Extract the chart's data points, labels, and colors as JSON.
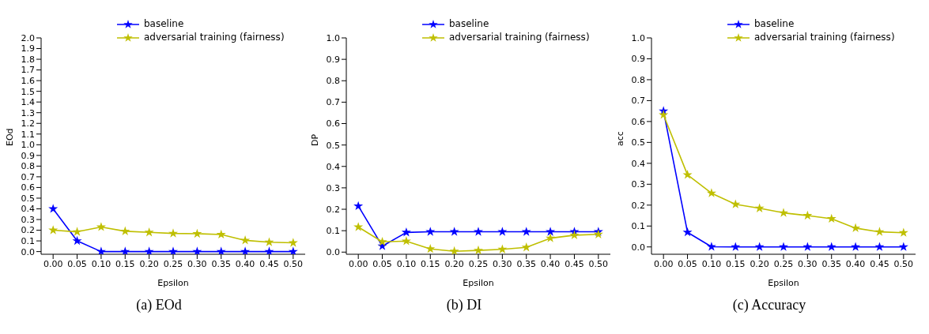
{
  "chart_data": [
    {
      "type": "line",
      "ylabel": "EOd",
      "xlabel": "Epsilon",
      "annotations": [
        "(a) EOd"
      ],
      "legend": "top",
      "marker": "star",
      "grid": false,
      "x": [
        0,
        0.05,
        0.1,
        0.15,
        0.2,
        0.25,
        0.3,
        0.35,
        0.4,
        0.45,
        0.5
      ],
      "xlim": [
        -0.025,
        0.525
      ],
      "xticks": [
        {
          "value": 0,
          "label": "0.00"
        },
        {
          "value": 0.05,
          "label": "0.05"
        },
        {
          "value": 0.1,
          "label": "0.10"
        },
        {
          "value": 0.15,
          "label": "0.15"
        },
        {
          "value": 0.2,
          "label": "0.20"
        },
        {
          "value": 0.25,
          "label": "0.25"
        },
        {
          "value": 0.3,
          "label": "0.30"
        },
        {
          "value": 0.35,
          "label": "0.35"
        },
        {
          "value": 0.4,
          "label": "0.40"
        },
        {
          "value": 0.45,
          "label": "0.45"
        },
        {
          "value": 0.5,
          "label": "0.50"
        }
      ],
      "ylim": [
        -0.025,
        2.0
      ],
      "yticks": [
        {
          "value": 0,
          "label": "0.0"
        },
        0.1,
        0.2,
        0.3,
        0.4,
        0.5,
        0.6,
        0.7,
        0.8,
        0.9,
        {
          "value": 1,
          "label": "1.0"
        },
        1.1,
        1.2,
        1.3,
        1.4,
        1.5,
        1.6,
        1.7,
        1.8,
        1.9,
        {
          "value": 2,
          "label": "2.0"
        }
      ],
      "series": [
        {
          "name": "baseline",
          "color": "#0000ff",
          "values": [
            0.4,
            0.1,
            0,
            0,
            0,
            0,
            0,
            0,
            0,
            0,
            0
          ]
        },
        {
          "name": "adversarial training (fairness)",
          "color": "#bfbf00",
          "values": [
            0.2,
            0.185,
            0.23,
            0.19,
            0.18,
            0.17,
            0.167,
            0.16,
            0.105,
            0.088,
            0.082
          ]
        }
      ]
    },
    {
      "type": "line",
      "ylabel": "DP",
      "xlabel": "Epsilon",
      "annotations": [
        "(b) DI"
      ],
      "legend": "top",
      "marker": "star",
      "grid": false,
      "x": [
        0,
        0.05,
        0.1,
        0.15,
        0.2,
        0.25,
        0.3,
        0.35,
        0.4,
        0.45,
        0.5
      ],
      "xlim": [
        -0.025,
        0.525
      ],
      "xticks": [
        {
          "value": 0,
          "label": "0.00"
        },
        {
          "value": 0.05,
          "label": "0.05"
        },
        {
          "value": 0.1,
          "label": "0.10"
        },
        {
          "value": 0.15,
          "label": "0.15"
        },
        {
          "value": 0.2,
          "label": "0.20"
        },
        {
          "value": 0.25,
          "label": "0.25"
        },
        {
          "value": 0.3,
          "label": "0.30"
        },
        {
          "value": 0.35,
          "label": "0.35"
        },
        {
          "value": 0.4,
          "label": "0.40"
        },
        {
          "value": 0.45,
          "label": "0.45"
        },
        {
          "value": 0.5,
          "label": "0.50"
        }
      ],
      "ylim": [
        -0.01,
        1.0
      ],
      "yticks": [
        {
          "value": 0,
          "label": "0.0"
        },
        0.1,
        0.2,
        0.3,
        0.4,
        0.5,
        0.6,
        0.7,
        0.8,
        0.9,
        {
          "value": 1,
          "label": "1.0"
        }
      ],
      "series": [
        {
          "name": "baseline",
          "color": "#0000ff",
          "values": [
            0.215,
            0.028,
            0.092,
            0.095,
            0.095,
            0.095,
            0.095,
            0.095,
            0.095,
            0.095,
            0.095
          ]
        },
        {
          "name": "adversarial training (fairness)",
          "color": "#bfbf00",
          "values": [
            0.117,
            0.048,
            0.051,
            0.015,
            0.004,
            0.008,
            0.013,
            0.022,
            0.065,
            0.079,
            0.083
          ]
        }
      ]
    },
    {
      "type": "line",
      "ylabel": "acc",
      "xlabel": "Epsilon",
      "annotations": [
        "(c) Accuracy"
      ],
      "legend": "top",
      "marker": "star",
      "grid": false,
      "x": [
        0,
        0.05,
        0.1,
        0.15,
        0.2,
        0.25,
        0.3,
        0.35,
        0.4,
        0.45,
        0.5
      ],
      "xlim": [
        -0.025,
        0.525
      ],
      "xticks": [
        {
          "value": 0,
          "label": "0.00"
        },
        {
          "value": 0.05,
          "label": "0.05"
        },
        {
          "value": 0.1,
          "label": "0.10"
        },
        {
          "value": 0.15,
          "label": "0.15"
        },
        {
          "value": 0.2,
          "label": "0.20"
        },
        {
          "value": 0.25,
          "label": "0.25"
        },
        {
          "value": 0.3,
          "label": "0.30"
        },
        {
          "value": 0.35,
          "label": "0.35"
        },
        {
          "value": 0.4,
          "label": "0.40"
        },
        {
          "value": 0.45,
          "label": "0.45"
        },
        {
          "value": 0.5,
          "label": "0.50"
        }
      ],
      "ylim": [
        -0.035,
        1.0
      ],
      "yticks": [
        {
          "value": 0,
          "label": "0.0"
        },
        0.1,
        0.2,
        0.3,
        0.4,
        0.5,
        0.6,
        0.7,
        0.8,
        0.9,
        {
          "value": 1,
          "label": "1.0"
        }
      ],
      "series": [
        {
          "name": "baseline",
          "color": "#0000ff",
          "values": [
            0.65,
            0.07,
            0.001,
            0,
            0,
            0,
            0,
            0,
            0,
            0,
            0
          ]
        },
        {
          "name": "adversarial training (fairness)",
          "color": "#bfbf00",
          "values": [
            0.632,
            0.345,
            0.257,
            0.204,
            0.185,
            0.163,
            0.15,
            0.135,
            0.09,
            0.072,
            0.068
          ]
        }
      ]
    }
  ]
}
